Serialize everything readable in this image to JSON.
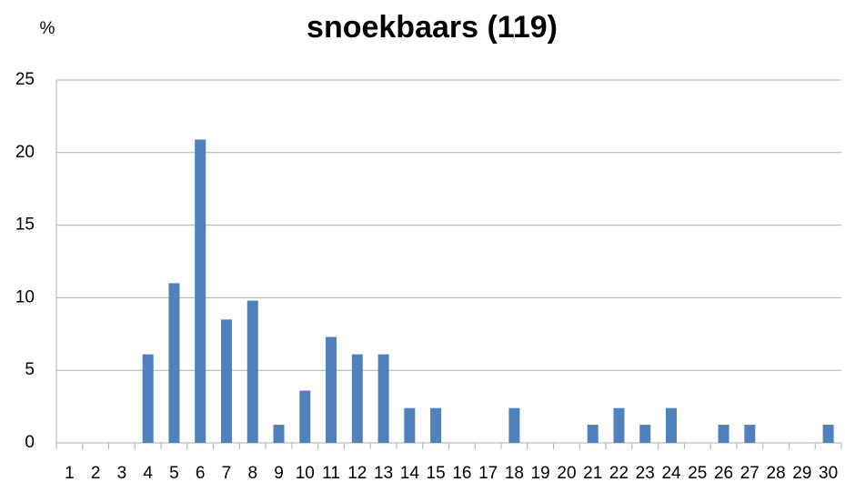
{
  "chart_data": {
    "type": "bar",
    "title": "snoekbaars (119)",
    "y_label": "%",
    "categories": [
      "1",
      "2",
      "3",
      "4",
      "5",
      "6",
      "7",
      "8",
      "9",
      "10",
      "11",
      "12",
      "13",
      "14",
      "15",
      "16",
      "17",
      "18",
      "19",
      "20",
      "21",
      "22",
      "23",
      "24",
      "25",
      "26",
      "27",
      "28",
      "29",
      "30"
    ],
    "values": [
      0,
      0,
      0,
      6.1,
      11.0,
      20.9,
      8.5,
      9.8,
      1.25,
      3.6,
      7.3,
      6.1,
      6.1,
      2.4,
      2.4,
      0,
      0,
      2.4,
      0,
      0,
      1.25,
      2.4,
      1.25,
      2.4,
      0,
      1.25,
      1.25,
      0,
      0,
      1.25
    ],
    "color": "#4f81bd",
    "ylim": [
      0,
      25
    ],
    "yticks": [
      0,
      5,
      10,
      15,
      20,
      25
    ],
    "grid": true
  }
}
